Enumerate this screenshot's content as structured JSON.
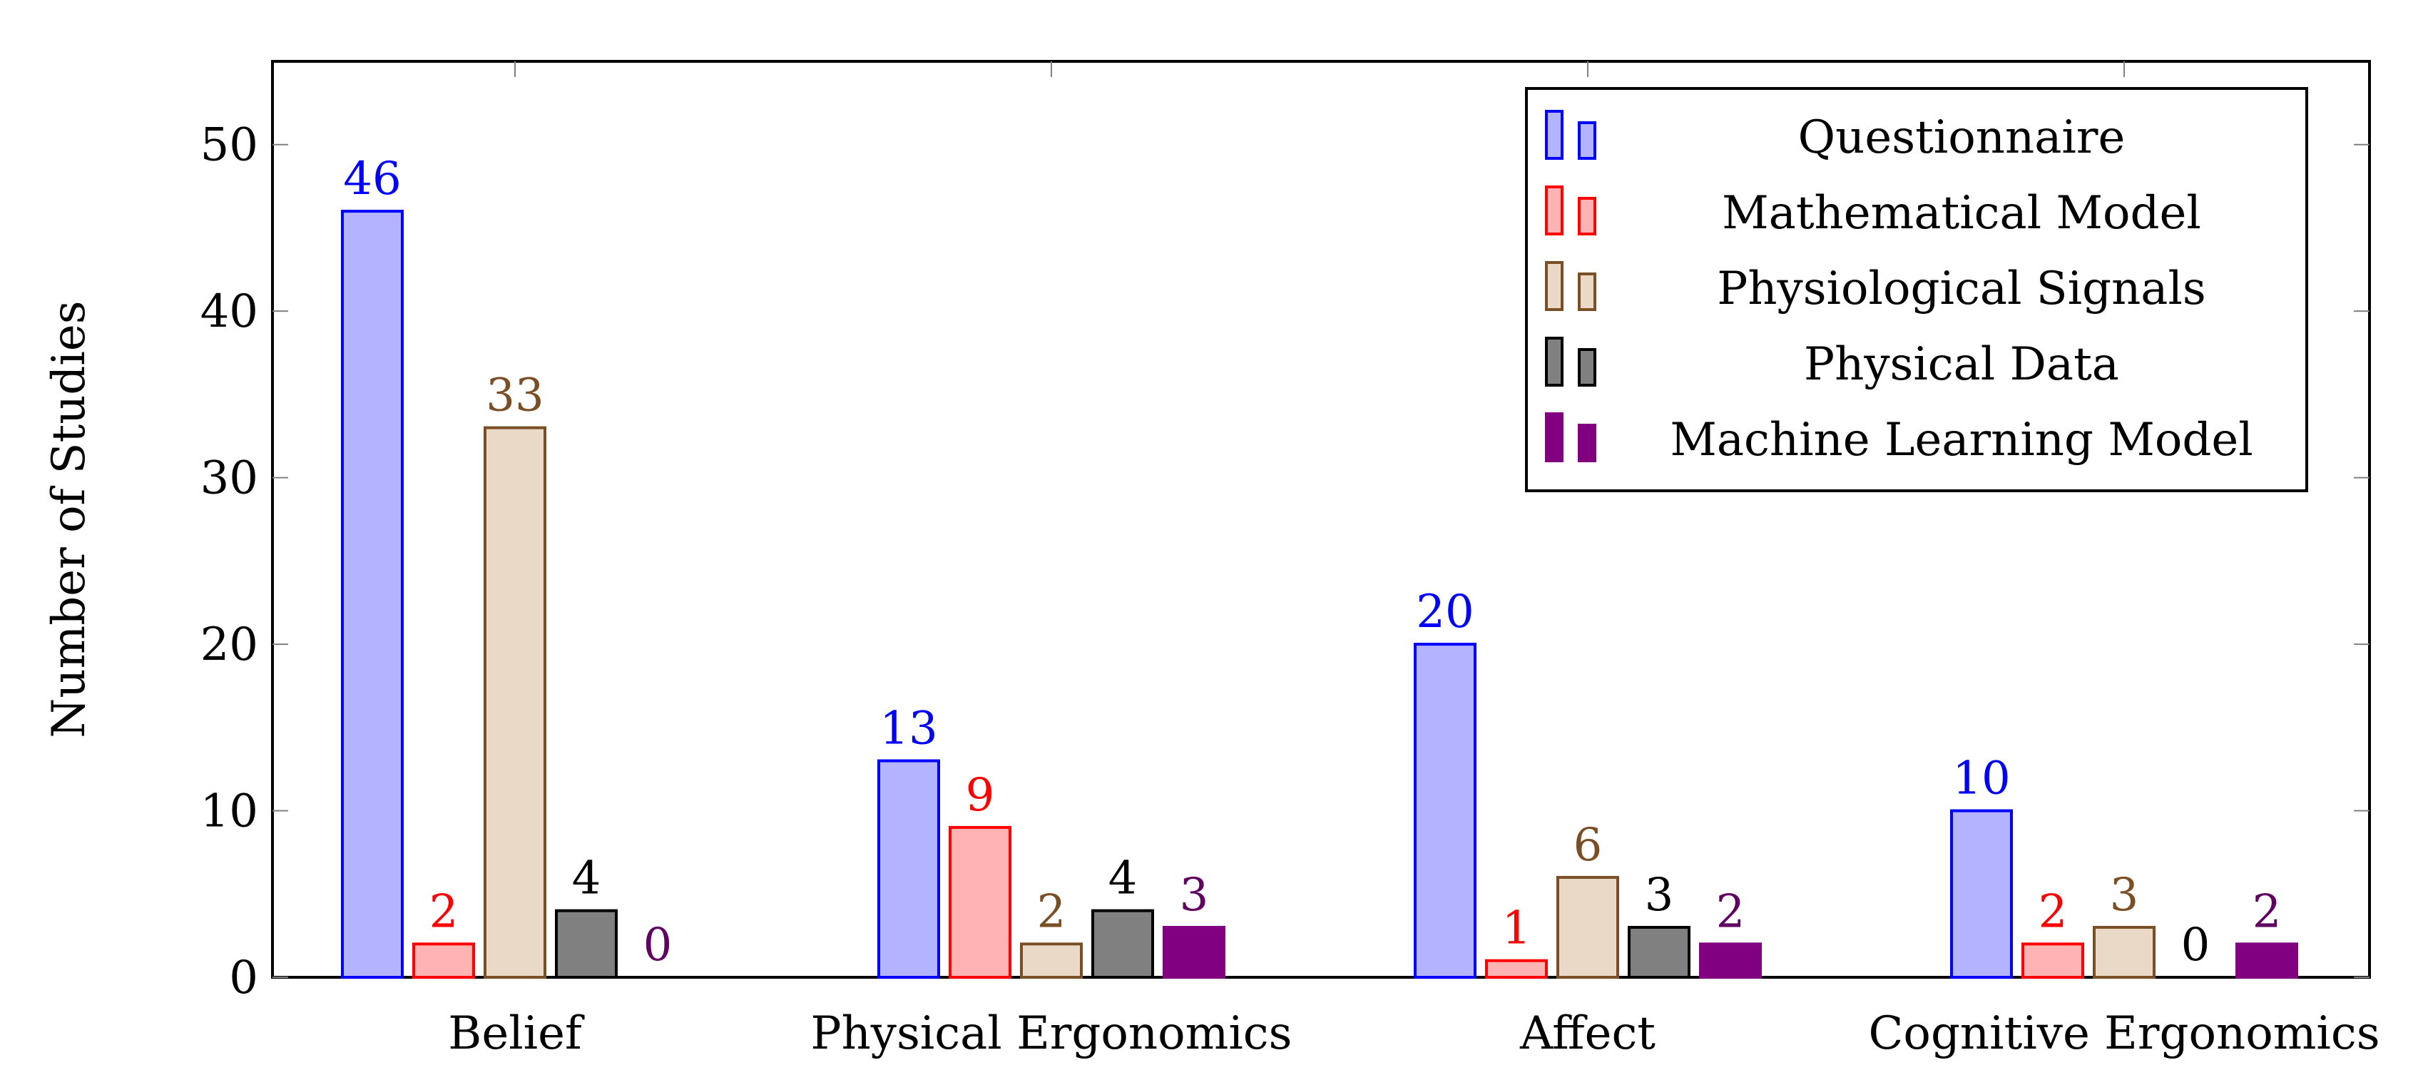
{
  "chart_data": {
    "type": "bar",
    "title": "",
    "xlabel": "",
    "ylabel": "Number of Studies",
    "ylim": [
      0,
      55
    ],
    "yticks": [
      0,
      10,
      20,
      30,
      40,
      50
    ],
    "categories": [
      "Belief",
      "Physical Ergonomics",
      "Affect",
      "Cognitive Ergonomics"
    ],
    "legend_position": "top-right",
    "grid": false,
    "series": [
      {
        "name": "Questionnaire",
        "values": [
          46,
          13,
          20,
          10
        ],
        "fill": "#b3b3ff",
        "stroke": "#0000ff",
        "label_color": "#0000ff"
      },
      {
        "name": "Mathematical Model",
        "values": [
          2,
          9,
          1,
          2
        ],
        "fill": "#ffb3b3",
        "stroke": "#ff0000",
        "label_color": "#ff0000"
      },
      {
        "name": "Physiological Signals",
        "values": [
          33,
          2,
          6,
          3
        ],
        "fill": "#ebd9c7",
        "stroke": "#7a4f26",
        "label_color": "#7a4f26"
      },
      {
        "name": "Physical Data",
        "values": [
          4,
          4,
          3,
          0
        ],
        "fill": "#808080",
        "stroke": "#000000",
        "label_color": "#000000"
      },
      {
        "name": "Machine Learning Model",
        "values": [
          0,
          3,
          2,
          2
        ],
        "fill": "#800080",
        "stroke": "#800080",
        "label_color": "#600060"
      }
    ]
  }
}
